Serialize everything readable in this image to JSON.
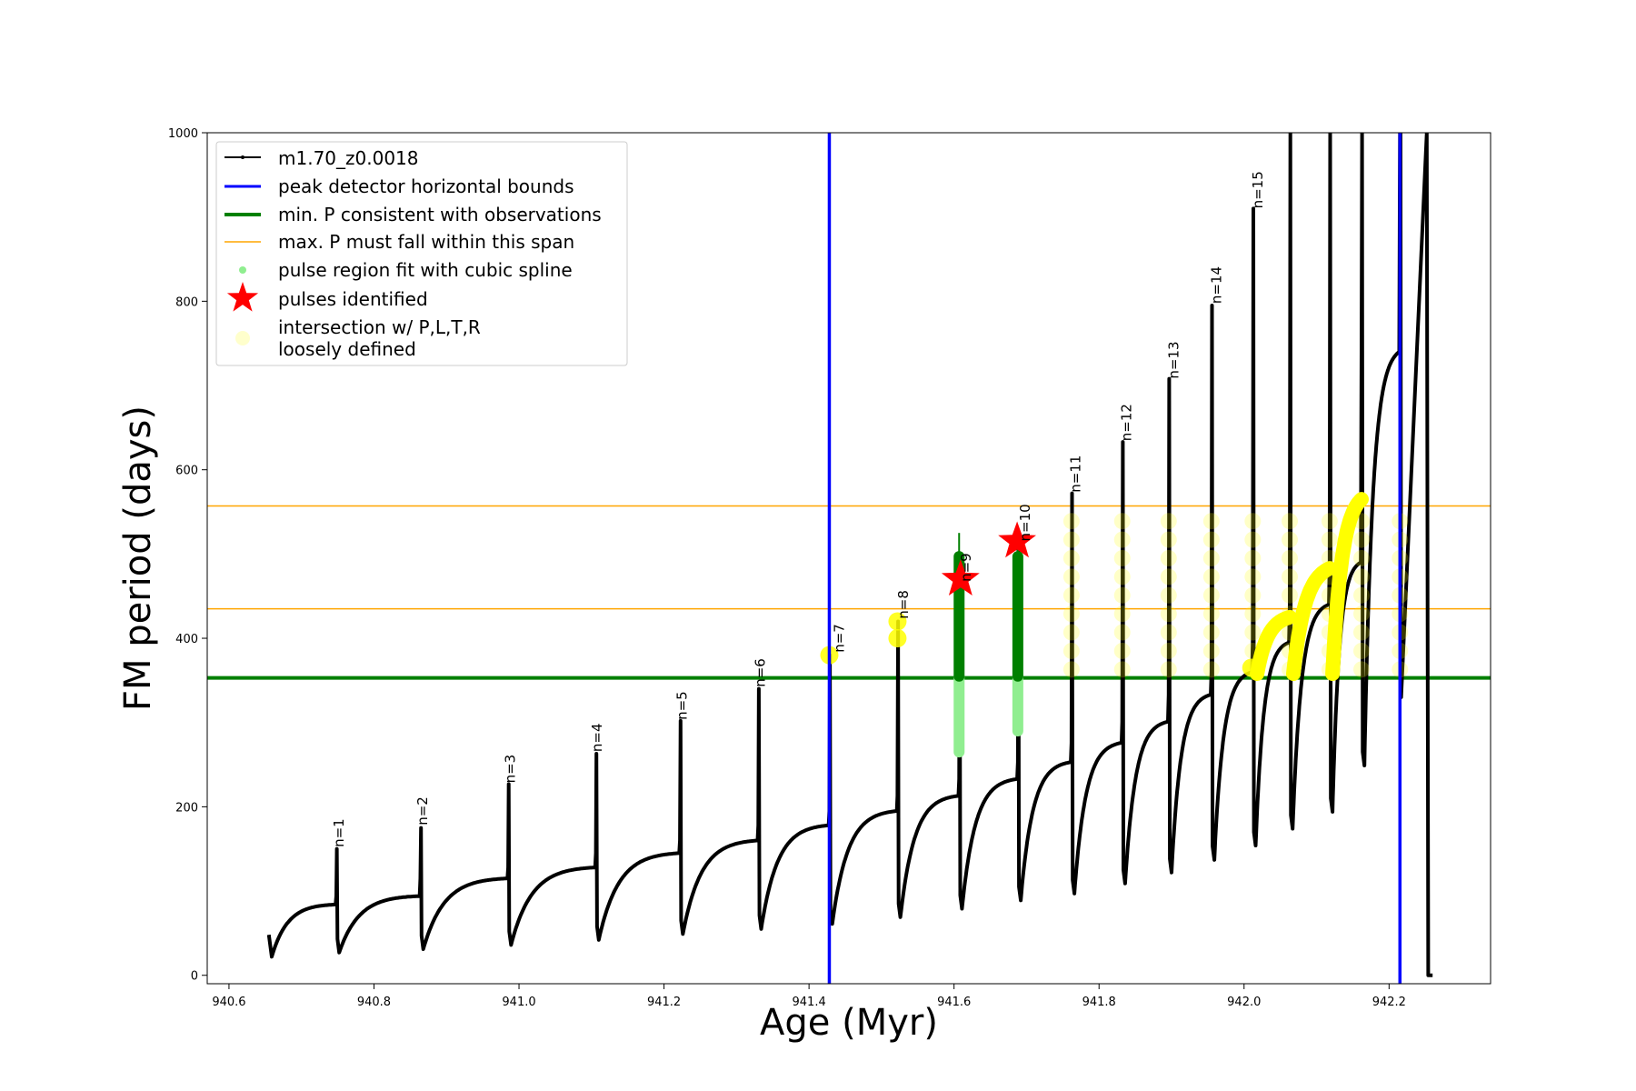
{
  "chart_data": {
    "type": "line",
    "xlabel": "Age (Myr)",
    "ylabel": "FM period (days)",
    "xlim": [
      940.57,
      942.34
    ],
    "ylim": [
      -10,
      1000
    ],
    "xticks": [
      940.6,
      940.8,
      941.0,
      941.2,
      941.4,
      941.6,
      941.8,
      942.0,
      942.2
    ],
    "xtick_labels": [
      "940.6",
      "940.8",
      "941.0",
      "941.2",
      "941.4",
      "941.6",
      "941.8",
      "942.0",
      "942.2"
    ],
    "yticks": [
      0,
      200,
      400,
      600,
      800,
      1000
    ],
    "ytick_labels": [
      "0",
      "200",
      "400",
      "600",
      "800",
      "1000"
    ],
    "grid": false,
    "legend_placement": "top-left",
    "series": [
      {
        "name": "m1.70_z0.0018",
        "color": "#000000",
        "style": "line-with-dots",
        "pulses": [
          {
            "t": 940.655,
            "min": 28,
            "max": 84,
            "spike": 48
          },
          {
            "t": 940.748,
            "min": 33,
            "max": 94,
            "spike": 150
          },
          {
            "t": 940.864,
            "min": 37,
            "max": 115,
            "spike": 175
          },
          {
            "t": 940.985,
            "min": 42,
            "max": 128,
            "spike": 227
          },
          {
            "t": 941.106,
            "min": 48,
            "max": 145,
            "spike": 263
          },
          {
            "t": 941.222,
            "min": 55,
            "max": 160,
            "spike": 302
          },
          {
            "t": 941.33,
            "min": 61,
            "max": 178,
            "spike": 340
          },
          {
            "t": 941.428,
            "min": 67,
            "max": 195,
            "spike": 380
          },
          {
            "t": 941.522,
            "min": 75,
            "max": 213,
            "spike": 420
          },
          {
            "t": 941.607,
            "min": 85,
            "max": 233,
            "spike": 470
          },
          {
            "t": 941.688,
            "min": 95,
            "max": 253,
            "spike": 515
          },
          {
            "t": 941.762,
            "min": 103,
            "max": 276,
            "spike": 572
          },
          {
            "t": 941.832,
            "min": 115,
            "max": 301,
            "spike": 633
          },
          {
            "t": 941.896,
            "min": 128,
            "max": 333,
            "spike": 708
          },
          {
            "t": 941.955,
            "min": 143,
            "max": 360,
            "spike": 795
          },
          {
            "t": 942.012,
            "min": 160,
            "max": 395,
            "spike": 910
          },
          {
            "t": 942.063,
            "min": 180,
            "max": 440,
            "spike": 1000
          },
          {
            "t": 942.118,
            "min": 200,
            "max": 490,
            "spike": 1000
          },
          {
            "t": 942.162,
            "min": 255,
            "max": 740,
            "spike": 1000
          },
          {
            "t": 942.215,
            "min": 320,
            "max": 1000,
            "spike": 1000
          }
        ],
        "final_drop": {
          "t": 942.254,
          "to": 0
        }
      },
      {
        "name": "peak detector horizontal bounds",
        "color": "#0000ff",
        "x": [
          941.428,
          942.215
        ]
      },
      {
        "name": "min. P consistent with observations",
        "color": "#008000",
        "y": 353
      },
      {
        "name": "max. P must fall within this span",
        "color": "#ffa500",
        "y": [
          435,
          557
        ]
      },
      {
        "name": "pulse region fit with cubic spline",
        "color": "#90ee90"
      },
      {
        "name": "pulses identified",
        "color": "#ff0000",
        "points": [
          {
            "x": 941.609,
            "y": 470
          },
          {
            "x": 941.687,
            "y": 515
          }
        ]
      },
      {
        "name": "intersection w/ P,L,T,R\nloosely defined",
        "color": "#ffff00"
      }
    ],
    "annotations": [
      "n=1",
      "n=2",
      "n=3",
      "n=4",
      "n=5",
      "n=6",
      "n=7",
      "n=8",
      "n=9",
      "n=10",
      "n=11",
      "n=12",
      "n=13",
      "n=14",
      "n=15"
    ],
    "annotation_positions": [
      {
        "x": 940.752,
        "y": 152
      },
      {
        "x": 940.867,
        "y": 178
      },
      {
        "x": 940.988,
        "y": 228
      },
      {
        "x": 941.108,
        "y": 265
      },
      {
        "x": 941.225,
        "y": 303
      },
      {
        "x": 941.333,
        "y": 342
      },
      {
        "x": 941.442,
        "y": 383
      },
      {
        "x": 941.53,
        "y": 423
      },
      {
        "x": 941.617,
        "y": 467
      },
      {
        "x": 941.698,
        "y": 515
      },
      {
        "x": 941.768,
        "y": 573
      },
      {
        "x": 941.838,
        "y": 634
      },
      {
        "x": 941.903,
        "y": 708
      },
      {
        "x": 941.962,
        "y": 797
      },
      {
        "x": 942.019,
        "y": 910
      }
    ]
  }
}
